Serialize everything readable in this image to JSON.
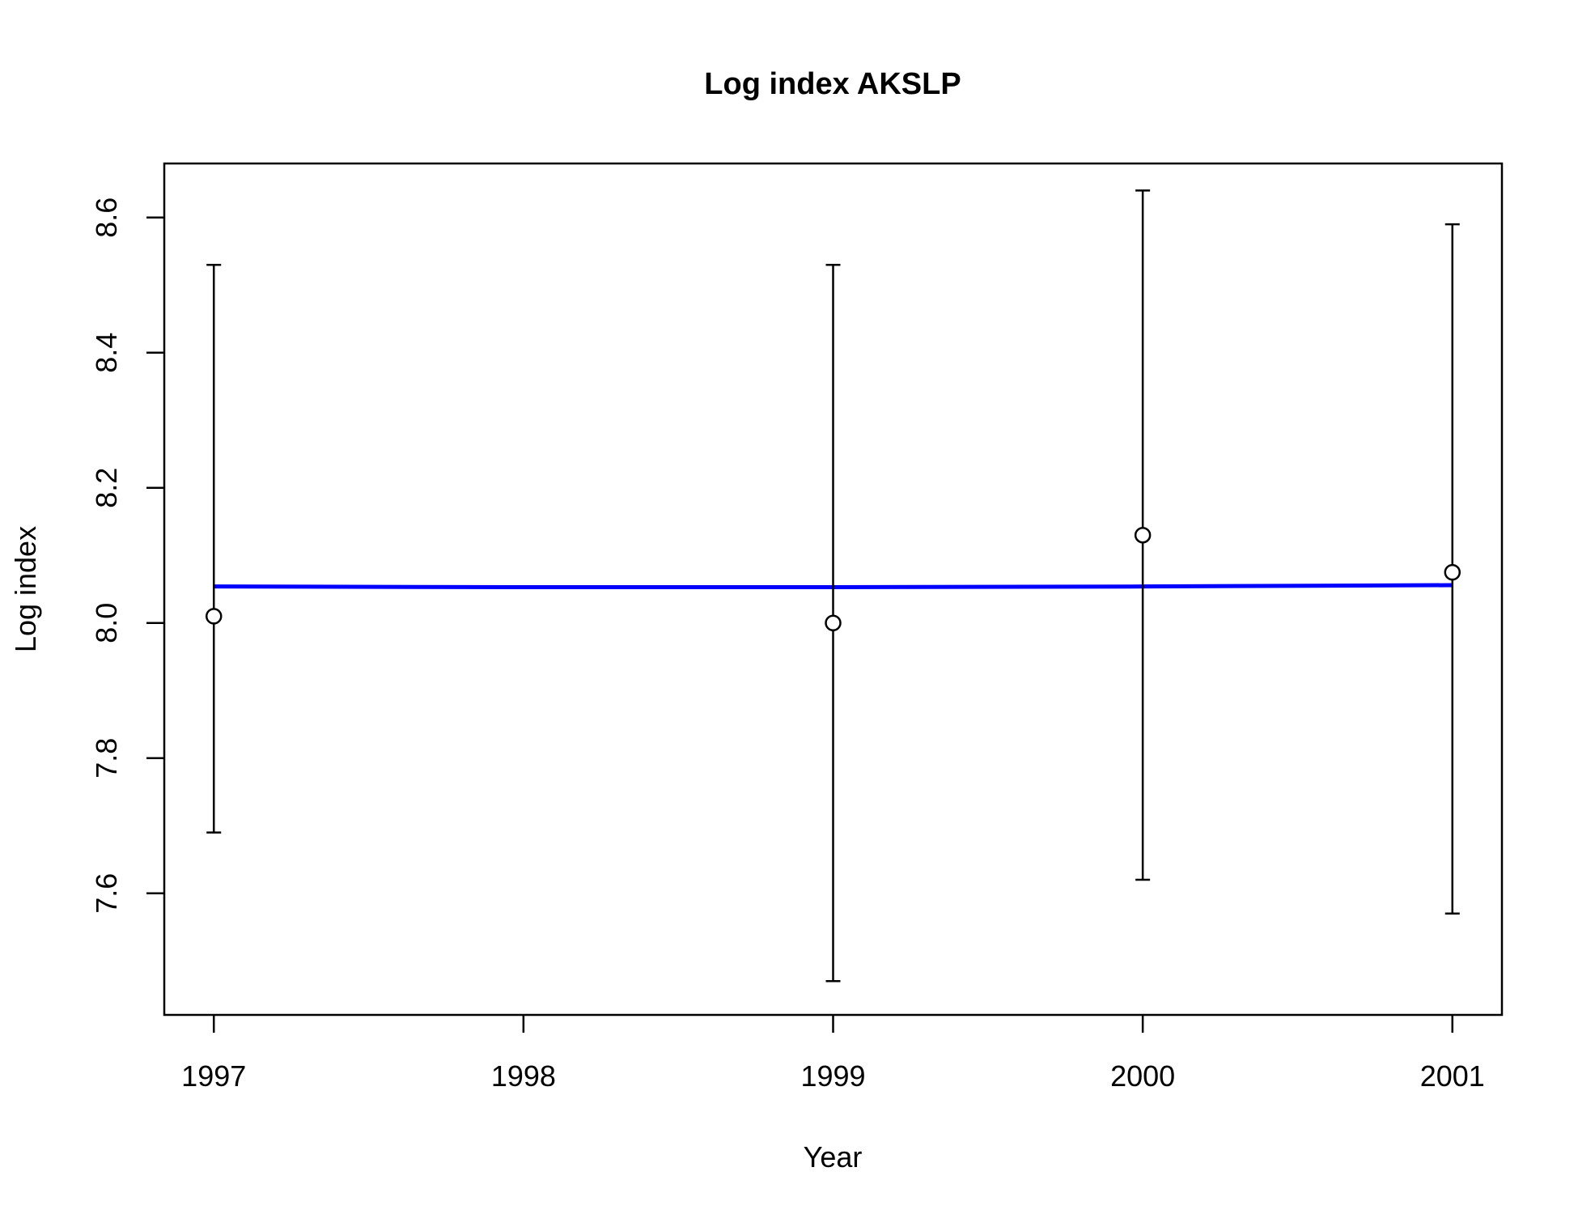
{
  "chart_data": {
    "type": "scatter",
    "title": "Log index AKSLP",
    "xlabel": "Year",
    "ylabel": "Log index",
    "xlim": [
      1996.84,
      2001.16
    ],
    "ylim": [
      7.42,
      8.68
    ],
    "x_ticks": [
      1997,
      1998,
      1999,
      2000,
      2001
    ],
    "y_ticks": [
      7.6,
      7.8,
      8.0,
      8.2,
      8.4,
      8.6
    ],
    "x_tick_labels": [
      "1997",
      "1998",
      "1999",
      "2000",
      "2001"
    ],
    "y_tick_labels": [
      "7.6",
      "7.8",
      "8.0",
      "8.2",
      "8.4",
      "8.6"
    ],
    "grid": false,
    "series": [
      {
        "kind": "points_with_errorbars",
        "marker": "open-circle",
        "color": "#000000",
        "x": [
          1997,
          1999,
          2000,
          2001
        ],
        "y": [
          8.01,
          8.0,
          8.13,
          8.075
        ],
        "lower": [
          7.69,
          7.47,
          7.62,
          7.57
        ],
        "upper": [
          8.53,
          8.53,
          8.64,
          8.59
        ]
      },
      {
        "kind": "line",
        "color": "#0000ff",
        "x": [
          1997,
          1998,
          1999,
          2000,
          2001
        ],
        "y": [
          8.054,
          8.053,
          8.053,
          8.054,
          8.056
        ]
      }
    ]
  }
}
